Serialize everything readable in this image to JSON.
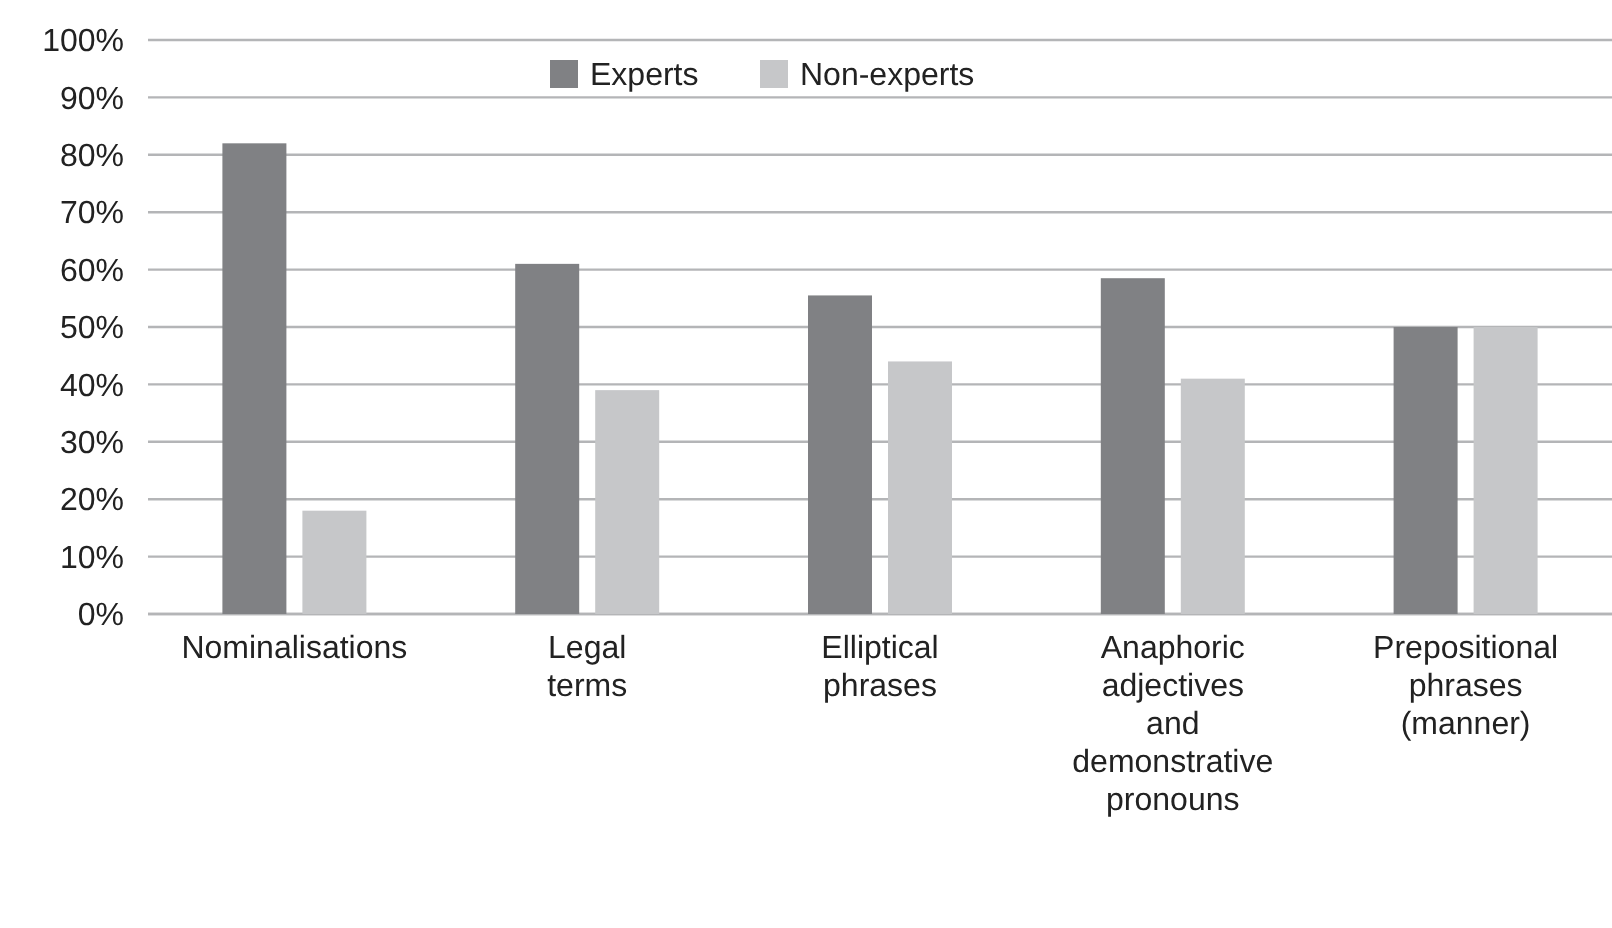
{
  "chart_data": {
    "type": "bar",
    "categories": [
      "Nominalisations",
      "Legal terms",
      "Elliptical phrases",
      "Anaphoric adjectives and demonstrative pronouns",
      "Prepositional phrases (manner)"
    ],
    "series": [
      {
        "name": "Experts",
        "color": "#808184",
        "values": [
          82,
          61,
          55.5,
          58.5,
          50
        ]
      },
      {
        "name": "Non-experts",
        "color": "#c6c7c9",
        "values": [
          18,
          39,
          44,
          41,
          50
        ]
      }
    ],
    "ylim": [
      0,
      100
    ],
    "yticks": [
      {
        "value": 0,
        "label": "0%"
      },
      {
        "value": 10,
        "label": "10%"
      },
      {
        "value": 20,
        "label": "20%"
      },
      {
        "value": 30,
        "label": "30%"
      },
      {
        "value": 40,
        "label": "40%"
      },
      {
        "value": 50,
        "label": "50%"
      },
      {
        "value": 60,
        "label": "60%"
      },
      {
        "value": 70,
        "label": "70%"
      },
      {
        "value": 80,
        "label": "80%"
      },
      {
        "value": 90,
        "label": "90%"
      },
      {
        "value": 100,
        "label": "100%"
      }
    ],
    "grid": "y",
    "legend": "top"
  }
}
